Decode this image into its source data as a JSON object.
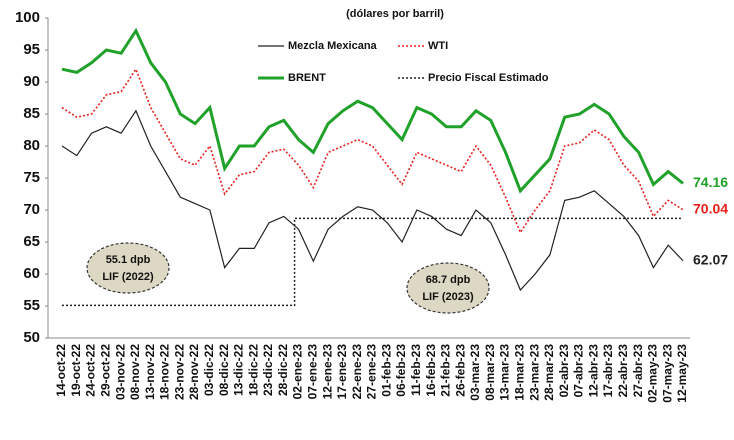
{
  "chart_data": {
    "type": "line",
    "subtitle": "(dólares por barril)",
    "categories": [
      "14-oct-22",
      "19-oct-22",
      "24-oct-22",
      "29-oct-22",
      "03-nov-22",
      "08-nov-22",
      "13-nov-22",
      "18-nov-22",
      "23-nov-22",
      "28-nov-22",
      "03-dic-22",
      "08-dic-22",
      "13-dic-22",
      "18-dic-22",
      "23-dic-22",
      "28-dic-22",
      "02-ene-23",
      "07-ene-23",
      "12-ene-23",
      "17-ene-23",
      "22-ene-23",
      "27-ene-23",
      "01-feb-23",
      "06-feb-23",
      "11-feb-23",
      "16-feb-23",
      "21-feb-23",
      "26-feb-23",
      "03-mar-23",
      "08-mar-23",
      "13-mar-23",
      "18-mar-23",
      "23-mar-23",
      "28-mar-23",
      "02-abr-23",
      "07-abr-23",
      "12-abr-23",
      "17-abr-23",
      "22-abr-23",
      "27-abr-23",
      "02-may-23",
      "07-may-23",
      "12-may-23"
    ],
    "series": [
      {
        "name": "Mezcla Mexicana",
        "color": "#222222",
        "line_style": "solid",
        "values": [
          80,
          78.5,
          82,
          83,
          82,
          85.5,
          80,
          76,
          72,
          71,
          70,
          61,
          64,
          64,
          68,
          69,
          67,
          62,
          67,
          69,
          70.5,
          70,
          68,
          65,
          70,
          69,
          67,
          66,
          70,
          68,
          63,
          57.5,
          60,
          63,
          71.5,
          72,
          73,
          71,
          69,
          66,
          61,
          64.5,
          62.07
        ]
      },
      {
        "name": "WTI",
        "color": "#e8211c",
        "line_style": "dotted",
        "values": [
          86,
          84.5,
          85,
          88,
          88.5,
          92,
          86,
          82,
          78,
          77,
          80,
          72.5,
          75.5,
          76,
          79,
          79.5,
          77,
          73.5,
          79,
          80,
          81,
          80,
          77,
          74,
          79,
          78,
          77,
          76,
          80,
          77,
          72,
          66.5,
          70,
          73,
          80,
          80.5,
          82.5,
          81,
          77,
          74.5,
          69,
          71.5,
          70.04
        ]
      },
      {
        "name": "BRENT",
        "color": "#1fa12a",
        "line_style": "bold",
        "values": [
          92,
          91.5,
          93,
          95,
          94.5,
          98,
          93,
          90,
          85,
          83.5,
          86,
          76.5,
          80,
          80,
          83,
          84,
          81,
          79,
          83.5,
          85.5,
          87,
          86,
          83.5,
          81,
          86,
          85,
          83,
          83,
          85.5,
          84,
          79,
          73,
          75.5,
          78,
          84.5,
          85,
          86.5,
          85,
          81.5,
          79,
          74,
          76,
          74.16
        ]
      },
      {
        "name": "Precio Fiscal Estimado",
        "color": "#222222",
        "line_style": "step-dotted",
        "values": [
          55.1,
          55.1,
          55.1,
          55.1,
          55.1,
          55.1,
          55.1,
          55.1,
          55.1,
          55.1,
          55.1,
          55.1,
          55.1,
          55.1,
          55.1,
          55.1,
          68.7,
          68.7,
          68.7,
          68.7,
          68.7,
          68.7,
          68.7,
          68.7,
          68.7,
          68.7,
          68.7,
          68.7,
          68.7,
          68.7,
          68.7,
          68.7,
          68.7,
          68.7,
          68.7,
          68.7,
          68.7,
          68.7,
          68.7,
          68.7,
          68.7,
          68.7,
          68.7
        ]
      }
    ],
    "end_labels": [
      0,
      1,
      2
    ],
    "annotations": [
      {
        "lines": [
          "55.1 dpb",
          "LIF (2022)"
        ]
      },
      {
        "lines": [
          "68.7 dpb",
          "LIF (2023)"
        ]
      }
    ],
    "ylim": [
      50,
      100
    ],
    "yticks": [
      50,
      55,
      60,
      65,
      70,
      75,
      80,
      85,
      90,
      95,
      100
    ]
  }
}
